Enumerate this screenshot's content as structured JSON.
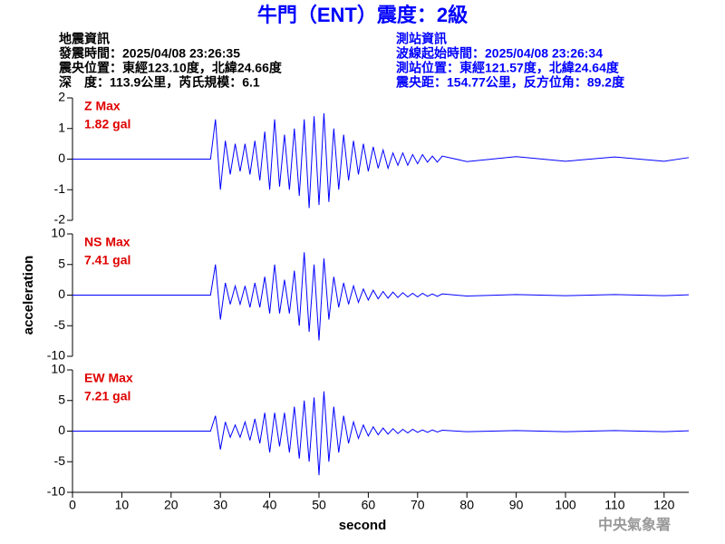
{
  "header": {
    "title": "牛門（ENT）震度：2級",
    "left": [
      "地震資訊",
      "發震時間：2025/04/08 23:26:35",
      "震央位置：東經123.10度，北緯24.66度",
      "深　度：113.9公里，芮氏規模：6.1"
    ],
    "right": [
      "測站資訊",
      "波線起始時間：2025/04/08 23:26:34",
      "測站位置：東經121.57度，北緯24.64度",
      "震央距：154.77公里，反方位角：89.2度"
    ],
    "footer": "中央氣象署"
  },
  "chart_data": [
    {
      "type": "line",
      "color": "#0000ff",
      "annotations": [
        "Z Max",
        "1.82 gal"
      ],
      "xlim": [
        0,
        125
      ],
      "ylim": [
        -2,
        2
      ],
      "yticks": [
        2,
        1,
        0,
        -1,
        -2
      ],
      "x": [
        0,
        10,
        20,
        28,
        29,
        30,
        31,
        32,
        33,
        34,
        35,
        36,
        37,
        38,
        39,
        40,
        41,
        42,
        43,
        44,
        45,
        46,
        47,
        48,
        49,
        50,
        51,
        52,
        53,
        54,
        55,
        56,
        57,
        58,
        59,
        60,
        61,
        62,
        63,
        64,
        65,
        66,
        67,
        68,
        69,
        70,
        71,
        72,
        73,
        74,
        75,
        80,
        90,
        100,
        110,
        120,
        125
      ],
      "values": [
        0,
        0,
        0,
        0,
        1.3,
        -1.0,
        0.6,
        -0.5,
        0.5,
        -0.4,
        0.5,
        -0.5,
        0.6,
        -0.7,
        0.9,
        -1.0,
        1.3,
        -0.9,
        0.8,
        -1.0,
        1.0,
        -1.2,
        1.3,
        -1.6,
        1.4,
        -1.5,
        1.5,
        -1.4,
        1.0,
        -1.0,
        0.8,
        -0.7,
        0.6,
        -0.5,
        0.5,
        -0.4,
        0.4,
        -0.3,
        0.3,
        -0.3,
        0.2,
        -0.2,
        0.2,
        -0.2,
        0.15,
        -0.15,
        0.15,
        -0.1,
        0.1,
        -0.1,
        0.1,
        -0.08,
        0.08,
        -0.07,
        0.07,
        -0.07,
        0.05
      ]
    },
    {
      "type": "line",
      "color": "#0000ff",
      "annotations": [
        "NS Max",
        "7.41 gal"
      ],
      "ylabel": "acceleration",
      "xlim": [
        0,
        125
      ],
      "ylim": [
        -10,
        10
      ],
      "yticks": [
        10,
        5,
        0,
        -5,
        -10
      ],
      "x": [
        0,
        10,
        20,
        28,
        29,
        30,
        31,
        32,
        33,
        34,
        35,
        36,
        37,
        38,
        39,
        40,
        41,
        42,
        43,
        44,
        45,
        46,
        47,
        48,
        49,
        50,
        51,
        52,
        53,
        54,
        55,
        56,
        57,
        58,
        59,
        60,
        61,
        62,
        63,
        64,
        65,
        66,
        67,
        68,
        69,
        70,
        71,
        72,
        73,
        74,
        75,
        80,
        90,
        100,
        110,
        120,
        125
      ],
      "values": [
        0,
        0,
        0,
        0,
        5,
        -4,
        2,
        -1.5,
        1.5,
        -1.5,
        1.5,
        -2,
        2,
        -2,
        3,
        -3,
        5,
        -3,
        2.5,
        -3,
        4,
        -5,
        7,
        -6,
        5,
        -7.4,
        6,
        -4,
        3,
        -2,
        2,
        -1.5,
        1.5,
        -1.2,
        1,
        -0.8,
        0.8,
        -0.6,
        0.6,
        -0.5,
        0.5,
        -0.4,
        0.4,
        -0.3,
        0.3,
        -0.3,
        0.3,
        -0.2,
        0.2,
        -0.2,
        0.2,
        -0.15,
        0.1,
        -0.1,
        0.1,
        -0.1,
        0.05
      ]
    },
    {
      "type": "line",
      "color": "#0000ff",
      "annotations": [
        "EW Max",
        "7.21 gal"
      ],
      "xlabel": "second",
      "xlim": [
        0,
        125
      ],
      "ylim": [
        -10,
        10
      ],
      "yticks": [
        10,
        5,
        0,
        -5,
        -10
      ],
      "xticks": [
        0,
        10,
        20,
        30,
        40,
        50,
        60,
        70,
        80,
        90,
        100,
        110,
        120
      ],
      "x": [
        0,
        10,
        20,
        28,
        29,
        30,
        31,
        32,
        33,
        34,
        35,
        36,
        37,
        38,
        39,
        40,
        41,
        42,
        43,
        44,
        45,
        46,
        47,
        48,
        49,
        50,
        51,
        52,
        53,
        54,
        55,
        56,
        57,
        58,
        59,
        60,
        61,
        62,
        63,
        64,
        65,
        66,
        67,
        68,
        69,
        70,
        71,
        72,
        73,
        74,
        75,
        80,
        90,
        100,
        110,
        120,
        125
      ],
      "values": [
        0,
        0,
        0,
        0,
        2.5,
        -3,
        1.5,
        -1,
        1,
        -1,
        1.5,
        -1.5,
        2,
        -2,
        3,
        -3.5,
        3,
        -2.5,
        3,
        -3.5,
        4,
        -4.5,
        5,
        -5,
        5.5,
        -7.2,
        6.5,
        -5,
        4,
        -3.5,
        2.5,
        -2,
        1.5,
        -1.2,
        1,
        -0.8,
        0.7,
        -0.6,
        0.5,
        -0.5,
        0.4,
        -0.4,
        0.3,
        -0.3,
        0.3,
        -0.2,
        0.2,
        -0.2,
        0.2,
        -0.15,
        0.15,
        -0.1,
        0.1,
        -0.1,
        0.1,
        -0.1,
        0.05
      ]
    }
  ]
}
